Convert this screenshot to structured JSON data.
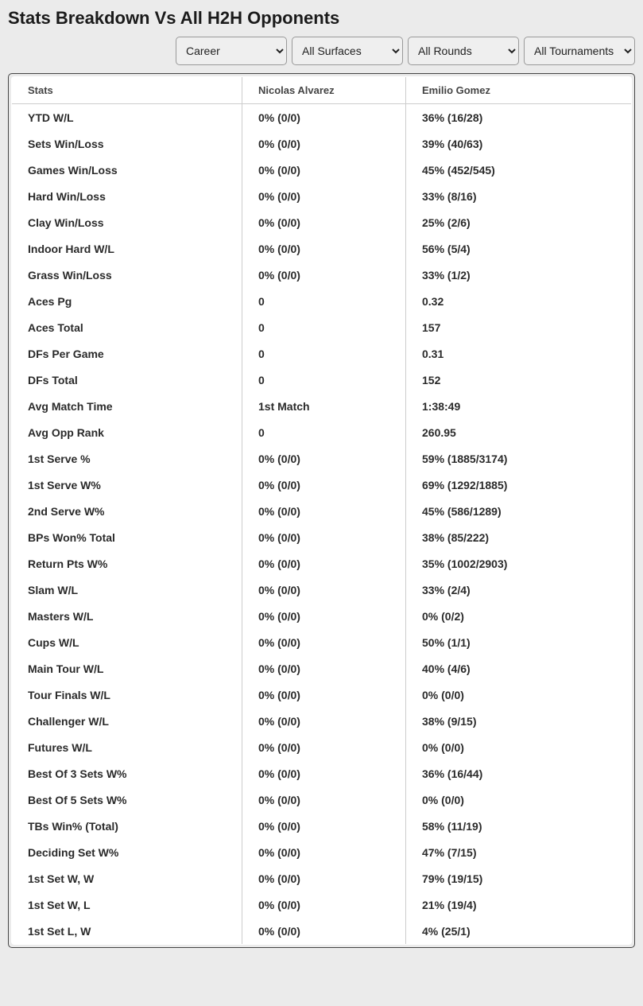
{
  "title": "Stats Breakdown Vs All H2H Opponents",
  "filters": {
    "time": "Career",
    "surface": "All Surfaces",
    "rounds": "All Rounds",
    "tournaments": "All Tournaments"
  },
  "table": {
    "headers": {
      "stats": "Stats",
      "player1": "Nicolas Alvarez",
      "player2": "Emilio Gomez"
    },
    "rows": [
      {
        "stat": "YTD W/L",
        "p1": "0% (0/0)",
        "p2": "36% (16/28)"
      },
      {
        "stat": "Sets Win/Loss",
        "p1": "0% (0/0)",
        "p2": "39% (40/63)"
      },
      {
        "stat": "Games Win/Loss",
        "p1": "0% (0/0)",
        "p2": "45% (452/545)"
      },
      {
        "stat": "Hard Win/Loss",
        "p1": "0% (0/0)",
        "p2": "33% (8/16)"
      },
      {
        "stat": "Clay Win/Loss",
        "p1": "0% (0/0)",
        "p2": "25% (2/6)"
      },
      {
        "stat": "Indoor Hard W/L",
        "p1": "0% (0/0)",
        "p2": "56% (5/4)"
      },
      {
        "stat": "Grass Win/Loss",
        "p1": "0% (0/0)",
        "p2": "33% (1/2)"
      },
      {
        "stat": "Aces Pg",
        "p1": "0",
        "p2": "0.32"
      },
      {
        "stat": "Aces Total",
        "p1": "0",
        "p2": "157"
      },
      {
        "stat": "DFs Per Game",
        "p1": "0",
        "p2": "0.31"
      },
      {
        "stat": "DFs Total",
        "p1": "0",
        "p2": "152"
      },
      {
        "stat": "Avg Match Time",
        "p1": "1st Match",
        "p2": "1:38:49"
      },
      {
        "stat": "Avg Opp Rank",
        "p1": "0",
        "p2": "260.95"
      },
      {
        "stat": "1st Serve %",
        "p1": "0% (0/0)",
        "p2": "59% (1885/3174)"
      },
      {
        "stat": "1st Serve W%",
        "p1": "0% (0/0)",
        "p2": "69% (1292/1885)"
      },
      {
        "stat": "2nd Serve W%",
        "p1": "0% (0/0)",
        "p2": "45% (586/1289)"
      },
      {
        "stat": "BPs Won% Total",
        "p1": "0% (0/0)",
        "p2": "38% (85/222)"
      },
      {
        "stat": "Return Pts W%",
        "p1": "0% (0/0)",
        "p2": "35% (1002/2903)"
      },
      {
        "stat": "Slam W/L",
        "p1": "0% (0/0)",
        "p2": "33% (2/4)"
      },
      {
        "stat": "Masters W/L",
        "p1": "0% (0/0)",
        "p2": "0% (0/2)"
      },
      {
        "stat": "Cups W/L",
        "p1": "0% (0/0)",
        "p2": "50% (1/1)"
      },
      {
        "stat": "Main Tour W/L",
        "p1": "0% (0/0)",
        "p2": "40% (4/6)"
      },
      {
        "stat": "Tour Finals W/L",
        "p1": "0% (0/0)",
        "p2": "0% (0/0)"
      },
      {
        "stat": "Challenger W/L",
        "p1": "0% (0/0)",
        "p2": "38% (9/15)"
      },
      {
        "stat": "Futures W/L",
        "p1": "0% (0/0)",
        "p2": "0% (0/0)"
      },
      {
        "stat": "Best Of 3 Sets W%",
        "p1": "0% (0/0)",
        "p2": "36% (16/44)"
      },
      {
        "stat": "Best Of 5 Sets W%",
        "p1": "0% (0/0)",
        "p2": "0% (0/0)"
      },
      {
        "stat": "TBs Win% (Total)",
        "p1": "0% (0/0)",
        "p2": "58% (11/19)"
      },
      {
        "stat": "Deciding Set W%",
        "p1": "0% (0/0)",
        "p2": "47% (7/15)"
      },
      {
        "stat": "1st Set W, W",
        "p1": "0% (0/0)",
        "p2": "79% (19/15)"
      },
      {
        "stat": "1st Set W, L",
        "p1": "0% (0/0)",
        "p2": "21% (19/4)"
      },
      {
        "stat": "1st Set L, W",
        "p1": "0% (0/0)",
        "p2": "4% (25/1)"
      }
    ]
  }
}
